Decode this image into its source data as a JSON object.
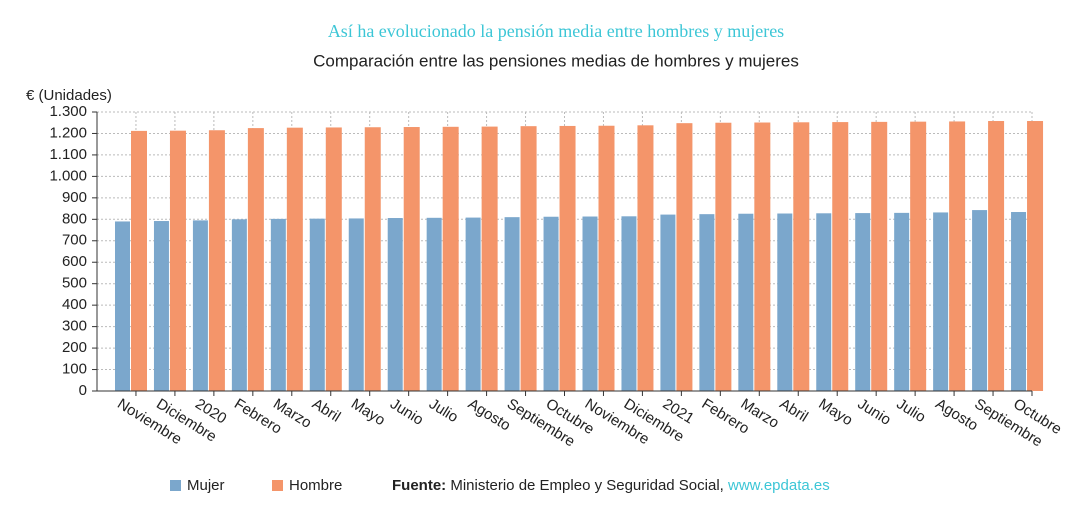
{
  "chart_data": {
    "type": "bar",
    "title": "Así ha evolucionado la pensión media entre hombres y mujeres",
    "subtitle": "Comparación entre las pensiones medias de hombres y mujeres",
    "y_label": "€ (Unidades)",
    "categories": [
      "Noviembre",
      "Diciembre",
      "2020",
      "Febrero",
      "Marzo",
      "Abril",
      "Mayo",
      "Junio",
      "Julio",
      "Agosto",
      "Septiembre",
      "Octubre",
      "Noviembre",
      "Diciembre",
      "2021",
      "Febrero",
      "Marzo",
      "Abril",
      "Mayo",
      "Junio",
      "Julio",
      "Agosto",
      "Septiembre",
      "Octubre"
    ],
    "series": [
      {
        "name": "Mujer",
        "color": "#7ba7cc",
        "values": [
          790,
          792,
          795,
          800,
          802,
          803,
          804,
          806,
          807,
          808,
          810,
          812,
          813,
          814,
          822,
          824,
          826,
          827,
          828,
          829,
          830,
          832,
          843,
          834
        ]
      },
      {
        "name": "Hombre",
        "color": "#f4956a",
        "values": [
          1212,
          1213,
          1215,
          1225,
          1227,
          1228,
          1229,
          1230,
          1231,
          1232,
          1234,
          1235,
          1236,
          1238,
          1248,
          1250,
          1251,
          1252,
          1253,
          1254,
          1255,
          1256,
          1258,
          1258
        ]
      }
    ],
    "ylim": [
      0,
      1300
    ],
    "yticks": [
      0,
      100,
      200,
      300,
      400,
      500,
      600,
      700,
      800,
      900,
      {
        "value": 1000,
        "label": "1.000"
      },
      {
        "value": 1100,
        "label": "1.100"
      },
      {
        "value": 1200,
        "label": "1.200"
      },
      {
        "value": 1300,
        "label": "1.300"
      }
    ],
    "grid": true,
    "legend": "bottom",
    "source_label": "Fuente:",
    "source": "Ministerio de Empleo y Seguridad Social,",
    "source_link": "www.epdata.es"
  }
}
